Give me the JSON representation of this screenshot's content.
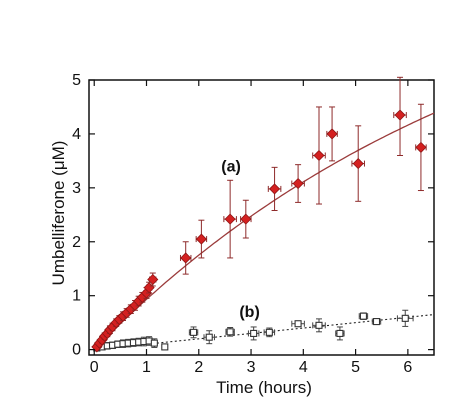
{
  "chart_data": {
    "type": "scatter",
    "xlabel": "Time (hours)",
    "ylabel": "Umbelliferone (μM)",
    "xlim": [
      -0.1,
      6.5
    ],
    "ylim": [
      -0.1,
      5
    ],
    "xticks": [
      0,
      1,
      2,
      3,
      4,
      5,
      6
    ],
    "yticks": [
      0,
      1,
      2,
      3,
      4,
      5
    ],
    "colors": {
      "a": "#d42020",
      "a_line": "#9b3b3b",
      "b": "#333333"
    },
    "series": [
      {
        "name": "(a)",
        "marker": "diamond",
        "fit": "saturating-curve",
        "points": [
          {
            "x": 0.05,
            "y": 0.05,
            "yerr": 0.05,
            "xerr": 0.04
          },
          {
            "x": 0.1,
            "y": 0.12,
            "yerr": 0.05,
            "xerr": 0.04
          },
          {
            "x": 0.15,
            "y": 0.18,
            "yerr": 0.06,
            "xerr": 0.04
          },
          {
            "x": 0.2,
            "y": 0.25,
            "yerr": 0.06,
            "xerr": 0.04
          },
          {
            "x": 0.25,
            "y": 0.3,
            "yerr": 0.06,
            "xerr": 0.04
          },
          {
            "x": 0.3,
            "y": 0.37,
            "yerr": 0.07,
            "xerr": 0.04
          },
          {
            "x": 0.35,
            "y": 0.42,
            "yerr": 0.07,
            "xerr": 0.04
          },
          {
            "x": 0.42,
            "y": 0.5,
            "yerr": 0.07,
            "xerr": 0.04
          },
          {
            "x": 0.48,
            "y": 0.56,
            "yerr": 0.07,
            "xerr": 0.04
          },
          {
            "x": 0.55,
            "y": 0.62,
            "yerr": 0.08,
            "xerr": 0.04
          },
          {
            "x": 0.62,
            "y": 0.68,
            "yerr": 0.08,
            "xerr": 0.04
          },
          {
            "x": 0.7,
            "y": 0.75,
            "yerr": 0.08,
            "xerr": 0.04
          },
          {
            "x": 0.78,
            "y": 0.82,
            "yerr": 0.09,
            "xerr": 0.04
          },
          {
            "x": 0.85,
            "y": 0.9,
            "yerr": 0.09,
            "xerr": 0.04
          },
          {
            "x": 0.92,
            "y": 0.97,
            "yerr": 0.09,
            "xerr": 0.04
          },
          {
            "x": 1.0,
            "y": 1.05,
            "yerr": 0.1,
            "xerr": 0.05
          },
          {
            "x": 1.05,
            "y": 1.15,
            "yerr": 0.1,
            "xerr": 0.05
          },
          {
            "x": 1.12,
            "y": 1.3,
            "yerr": 0.12,
            "xerr": 0.06
          },
          {
            "x": 1.75,
            "y": 1.7,
            "yerr": 0.3,
            "xerr": 0.1
          },
          {
            "x": 2.05,
            "y": 2.05,
            "yerr": 0.35,
            "xerr": 0.1
          },
          {
            "x": 2.6,
            "y": 2.42,
            "yerr": 0.72,
            "xerr": 0.12
          },
          {
            "x": 2.9,
            "y": 2.42,
            "yerr": 0.35,
            "xerr": 0.1
          },
          {
            "x": 3.45,
            "y": 2.98,
            "yerr": 0.4,
            "xerr": 0.12
          },
          {
            "x": 3.9,
            "y": 3.08,
            "yerr": 0.35,
            "xerr": 0.12
          },
          {
            "x": 4.3,
            "y": 3.6,
            "yerr": 0.9,
            "xerr": 0.12
          },
          {
            "x": 4.55,
            "y": 4.0,
            "yerr": 0.5,
            "xerr": 0.1
          },
          {
            "x": 5.05,
            "y": 3.45,
            "yerr": 0.7,
            "xerr": 0.12
          },
          {
            "x": 5.85,
            "y": 4.35,
            "yerr": 0.75,
            "xerr": 0.12
          },
          {
            "x": 6.25,
            "y": 3.75,
            "yerr": 0.8,
            "xerr": 0.1
          }
        ]
      },
      {
        "name": "(b)",
        "marker": "square",
        "fit": "dotted-line",
        "points": [
          {
            "x": 0.05,
            "y": 0.03,
            "yerr": 0.05,
            "xerr": 0.04
          },
          {
            "x": 0.15,
            "y": 0.05,
            "yerr": 0.05,
            "xerr": 0.04
          },
          {
            "x": 0.25,
            "y": 0.07,
            "yerr": 0.06,
            "xerr": 0.04
          },
          {
            "x": 0.35,
            "y": 0.08,
            "yerr": 0.06,
            "xerr": 0.04
          },
          {
            "x": 0.45,
            "y": 0.1,
            "yerr": 0.06,
            "xerr": 0.04
          },
          {
            "x": 0.55,
            "y": 0.11,
            "yerr": 0.07,
            "xerr": 0.04
          },
          {
            "x": 0.65,
            "y": 0.12,
            "yerr": 0.07,
            "xerr": 0.04
          },
          {
            "x": 0.75,
            "y": 0.13,
            "yerr": 0.07,
            "xerr": 0.04
          },
          {
            "x": 0.85,
            "y": 0.14,
            "yerr": 0.07,
            "xerr": 0.04
          },
          {
            "x": 0.95,
            "y": 0.15,
            "yerr": 0.08,
            "xerr": 0.04
          },
          {
            "x": 1.05,
            "y": 0.16,
            "yerr": 0.08,
            "xerr": 0.05
          },
          {
            "x": 1.15,
            "y": 0.12,
            "yerr": 0.08,
            "xerr": 0.05
          },
          {
            "x": 1.35,
            "y": 0.05,
            "yerr": 0.05,
            "xerr": 0.05
          },
          {
            "x": 1.9,
            "y": 0.32,
            "yerr": 0.1,
            "xerr": 0.08
          },
          {
            "x": 2.2,
            "y": 0.23,
            "yerr": 0.12,
            "xerr": 0.1
          },
          {
            "x": 2.6,
            "y": 0.33,
            "yerr": 0.08,
            "xerr": 0.08
          },
          {
            "x": 3.05,
            "y": 0.3,
            "yerr": 0.12,
            "xerr": 0.1
          },
          {
            "x": 3.35,
            "y": 0.32,
            "yerr": 0.08,
            "xerr": 0.1
          },
          {
            "x": 3.9,
            "y": 0.48,
            "yerr": 0.05,
            "xerr": 0.12
          },
          {
            "x": 4.3,
            "y": 0.45,
            "yerr": 0.12,
            "xerr": 0.12
          },
          {
            "x": 4.7,
            "y": 0.3,
            "yerr": 0.12,
            "xerr": 0.08
          },
          {
            "x": 5.15,
            "y": 0.62,
            "yerr": 0.06,
            "xerr": 0.08
          },
          {
            "x": 5.4,
            "y": 0.52,
            "yerr": 0.05,
            "xerr": 0.08
          },
          {
            "x": 5.95,
            "y": 0.58,
            "yerr": 0.15,
            "xerr": 0.15
          }
        ]
      }
    ],
    "annotations": [
      {
        "text": "(a)",
        "x": 3.0,
        "y": 3.4
      },
      {
        "text": "(b)",
        "x": 3.45,
        "y": 0.7
      }
    ]
  }
}
